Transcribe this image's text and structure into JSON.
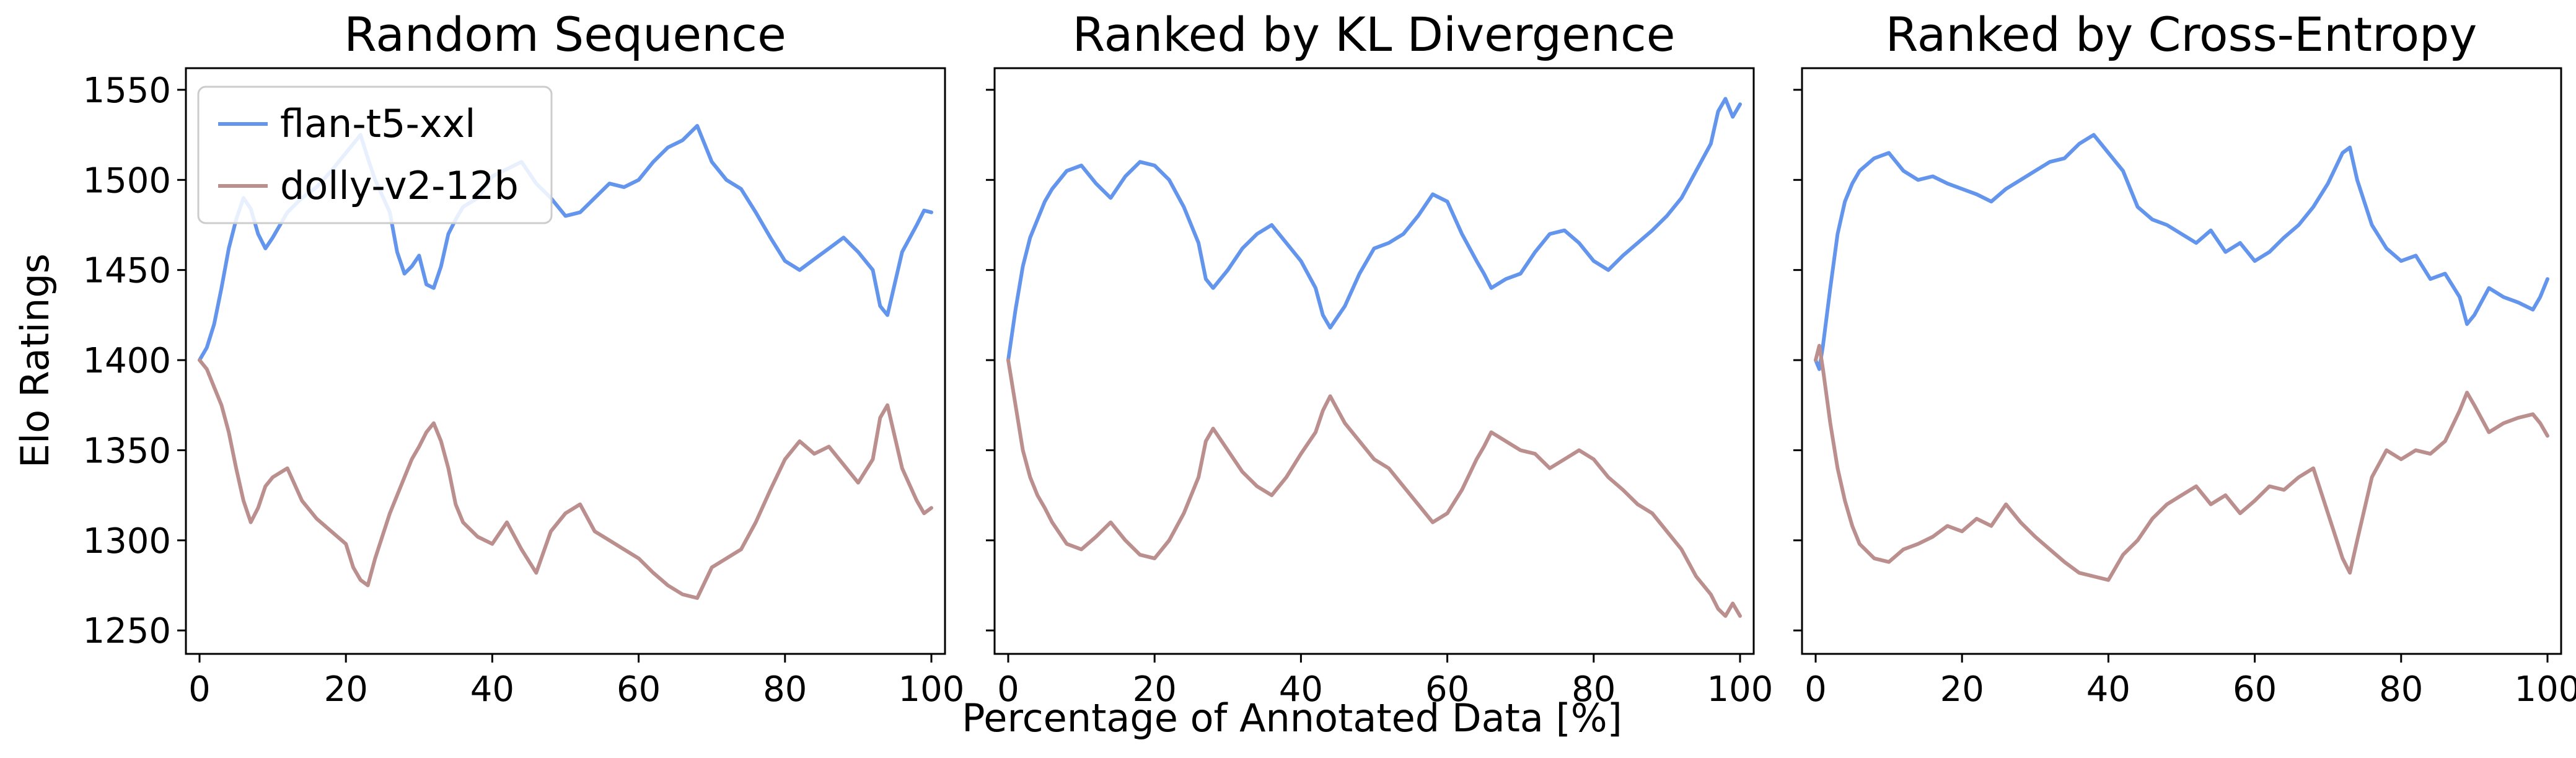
{
  "figure": {
    "ylabel": "Elo Ratings",
    "xlabel": "Percentage of Annotated Data [%]"
  },
  "legend": [
    {
      "label": "flan-t5-xxl",
      "color": "#6495ed"
    },
    {
      "label": "dolly-v2-12b",
      "color": "#bc8f8f"
    }
  ],
  "chart_data": [
    {
      "type": "line",
      "title": "Random Sequence",
      "xlim": [
        0,
        100
      ],
      "ylim": [
        1237,
        1562
      ],
      "xticks": [
        0,
        20,
        40,
        60,
        80,
        100
      ],
      "yticks": [
        1250,
        1300,
        1350,
        1400,
        1450,
        1500,
        1550
      ],
      "grid": false,
      "legend_position": "top-left",
      "series": [
        {
          "name": "flan-t5-xxl",
          "color": "#6495ed",
          "x": [
            0,
            1,
            2,
            3,
            4,
            5,
            6,
            7,
            8,
            9,
            10,
            12,
            14,
            16,
            18,
            20,
            21,
            22,
            23,
            24,
            26,
            27,
            28,
            29,
            30,
            31,
            32,
            33,
            34,
            35,
            36,
            38,
            40,
            42,
            44,
            46,
            48,
            50,
            52,
            54,
            56,
            58,
            60,
            62,
            64,
            66,
            68,
            70,
            72,
            74,
            76,
            78,
            80,
            82,
            84,
            86,
            88,
            90,
            92,
            93,
            94,
            96,
            98,
            99,
            100
          ],
          "y": [
            1400,
            1407,
            1420,
            1440,
            1462,
            1478,
            1490,
            1484,
            1470,
            1462,
            1468,
            1482,
            1490,
            1496,
            1505,
            1515,
            1520,
            1525,
            1512,
            1500,
            1482,
            1460,
            1448,
            1452,
            1458,
            1442,
            1440,
            1452,
            1470,
            1478,
            1485,
            1490,
            1502,
            1506,
            1510,
            1498,
            1490,
            1480,
            1482,
            1490,
            1498,
            1496,
            1500,
            1510,
            1518,
            1522,
            1530,
            1510,
            1500,
            1495,
            1482,
            1468,
            1455,
            1450,
            1456,
            1462,
            1468,
            1460,
            1450,
            1430,
            1425,
            1460,
            1475,
            1483,
            1482
          ]
        },
        {
          "name": "dolly-v2-12b",
          "color": "#bc8f8f",
          "x": [
            0,
            1,
            2,
            3,
            4,
            5,
            6,
            7,
            8,
            9,
            10,
            12,
            14,
            16,
            18,
            20,
            21,
            22,
            23,
            24,
            26,
            27,
            28,
            29,
            30,
            31,
            32,
            33,
            34,
            35,
            36,
            38,
            40,
            42,
            44,
            46,
            48,
            50,
            52,
            54,
            56,
            58,
            60,
            62,
            64,
            66,
            68,
            70,
            72,
            74,
            76,
            78,
            80,
            82,
            84,
            86,
            88,
            90,
            92,
            93,
            94,
            96,
            98,
            99,
            100
          ],
          "y": [
            1400,
            1395,
            1385,
            1375,
            1360,
            1340,
            1322,
            1310,
            1318,
            1330,
            1335,
            1340,
            1322,
            1312,
            1305,
            1298,
            1285,
            1278,
            1275,
            1290,
            1315,
            1325,
            1335,
            1345,
            1352,
            1360,
            1365,
            1355,
            1340,
            1320,
            1310,
            1302,
            1298,
            1310,
            1295,
            1282,
            1305,
            1315,
            1320,
            1305,
            1300,
            1295,
            1290,
            1282,
            1275,
            1270,
            1268,
            1285,
            1290,
            1295,
            1310,
            1328,
            1345,
            1355,
            1348,
            1352,
            1342,
            1332,
            1345,
            1368,
            1375,
            1340,
            1322,
            1315,
            1318
          ]
        }
      ]
    },
    {
      "type": "line",
      "title": "Ranked by KL Divergence",
      "xlim": [
        0,
        100
      ],
      "ylim": [
        1237,
        1562
      ],
      "xticks": [
        0,
        20,
        40,
        60,
        80,
        100
      ],
      "yticks": [
        1250,
        1300,
        1350,
        1400,
        1450,
        1500,
        1550
      ],
      "grid": false,
      "series": [
        {
          "name": "flan-t5-xxl",
          "color": "#6495ed",
          "x": [
            0,
            1,
            2,
            3,
            4,
            5,
            6,
            8,
            10,
            12,
            14,
            16,
            18,
            20,
            22,
            24,
            26,
            27,
            28,
            30,
            32,
            34,
            36,
            38,
            40,
            42,
            43,
            44,
            46,
            48,
            50,
            52,
            54,
            56,
            58,
            60,
            62,
            64,
            65,
            66,
            68,
            70,
            72,
            74,
            76,
            78,
            80,
            82,
            84,
            86,
            88,
            90,
            92,
            94,
            96,
            97,
            98,
            99,
            100
          ],
          "y": [
            1400,
            1428,
            1452,
            1468,
            1478,
            1488,
            1495,
            1505,
            1508,
            1498,
            1490,
            1502,
            1510,
            1508,
            1500,
            1485,
            1465,
            1445,
            1440,
            1450,
            1462,
            1470,
            1475,
            1465,
            1455,
            1440,
            1425,
            1418,
            1430,
            1448,
            1462,
            1465,
            1470,
            1480,
            1492,
            1488,
            1470,
            1455,
            1448,
            1440,
            1445,
            1448,
            1460,
            1470,
            1472,
            1465,
            1455,
            1450,
            1458,
            1465,
            1472,
            1480,
            1490,
            1505,
            1520,
            1538,
            1545,
            1535,
            1542
          ]
        },
        {
          "name": "dolly-v2-12b",
          "color": "#bc8f8f",
          "x": [
            0,
            1,
            2,
            3,
            4,
            5,
            6,
            8,
            10,
            12,
            14,
            16,
            18,
            20,
            22,
            24,
            26,
            27,
            28,
            30,
            32,
            34,
            36,
            38,
            40,
            42,
            43,
            44,
            46,
            48,
            50,
            52,
            54,
            56,
            58,
            60,
            62,
            64,
            65,
            66,
            68,
            70,
            72,
            74,
            76,
            78,
            80,
            82,
            84,
            86,
            88,
            90,
            92,
            94,
            96,
            97,
            98,
            99,
            100
          ],
          "y": [
            1400,
            1375,
            1350,
            1335,
            1325,
            1318,
            1310,
            1298,
            1295,
            1302,
            1310,
            1300,
            1292,
            1290,
            1300,
            1315,
            1335,
            1355,
            1362,
            1350,
            1338,
            1330,
            1325,
            1335,
            1348,
            1360,
            1372,
            1380,
            1365,
            1355,
            1345,
            1340,
            1330,
            1320,
            1310,
            1315,
            1328,
            1345,
            1352,
            1360,
            1355,
            1350,
            1348,
            1340,
            1345,
            1350,
            1345,
            1335,
            1328,
            1320,
            1315,
            1305,
            1295,
            1280,
            1270,
            1262,
            1258,
            1265,
            1258
          ]
        }
      ]
    },
    {
      "type": "line",
      "title": "Ranked by Cross-Entropy",
      "xlim": [
        0,
        100
      ],
      "ylim": [
        1237,
        1562
      ],
      "xticks": [
        0,
        20,
        40,
        60,
        80,
        100
      ],
      "yticks": [
        1250,
        1300,
        1350,
        1400,
        1450,
        1500,
        1550
      ],
      "grid": false,
      "series": [
        {
          "name": "flan-t5-xxl",
          "color": "#6495ed",
          "x": [
            0,
            0.5,
            1,
            2,
            3,
            4,
            5,
            6,
            8,
            10,
            12,
            14,
            16,
            18,
            20,
            22,
            24,
            26,
            28,
            30,
            32,
            34,
            36,
            38,
            40,
            42,
            44,
            46,
            48,
            50,
            52,
            54,
            56,
            58,
            60,
            62,
            64,
            66,
            68,
            70,
            72,
            73,
            74,
            76,
            78,
            80,
            82,
            84,
            86,
            88,
            89,
            90,
            92,
            94,
            96,
            98,
            99,
            100
          ],
          "y": [
            1400,
            1395,
            1408,
            1440,
            1470,
            1488,
            1498,
            1505,
            1512,
            1515,
            1505,
            1500,
            1502,
            1498,
            1495,
            1492,
            1488,
            1495,
            1500,
            1505,
            1510,
            1512,
            1520,
            1525,
            1515,
            1505,
            1485,
            1478,
            1475,
            1470,
            1465,
            1472,
            1460,
            1465,
            1455,
            1460,
            1468,
            1475,
            1485,
            1498,
            1515,
            1518,
            1500,
            1475,
            1462,
            1455,
            1458,
            1445,
            1448,
            1435,
            1420,
            1425,
            1440,
            1435,
            1432,
            1428,
            1435,
            1445
          ]
        },
        {
          "name": "dolly-v2-12b",
          "color": "#bc8f8f",
          "x": [
            0,
            0.5,
            1,
            2,
            3,
            4,
            5,
            6,
            8,
            10,
            12,
            14,
            16,
            18,
            20,
            22,
            24,
            26,
            28,
            30,
            32,
            34,
            36,
            38,
            40,
            42,
            44,
            46,
            48,
            50,
            52,
            54,
            56,
            58,
            60,
            62,
            64,
            66,
            68,
            70,
            72,
            73,
            74,
            76,
            78,
            80,
            82,
            84,
            86,
            88,
            89,
            90,
            92,
            94,
            96,
            98,
            99,
            100
          ],
          "y": [
            1400,
            1408,
            1395,
            1365,
            1340,
            1322,
            1308,
            1298,
            1290,
            1288,
            1295,
            1298,
            1302,
            1308,
            1305,
            1312,
            1308,
            1320,
            1310,
            1302,
            1295,
            1288,
            1282,
            1280,
            1278,
            1292,
            1300,
            1312,
            1320,
            1325,
            1330,
            1320,
            1325,
            1315,
            1322,
            1330,
            1328,
            1335,
            1340,
            1315,
            1290,
            1282,
            1300,
            1335,
            1350,
            1345,
            1350,
            1348,
            1355,
            1372,
            1382,
            1375,
            1360,
            1365,
            1368,
            1370,
            1365,
            1358
          ]
        }
      ]
    }
  ]
}
